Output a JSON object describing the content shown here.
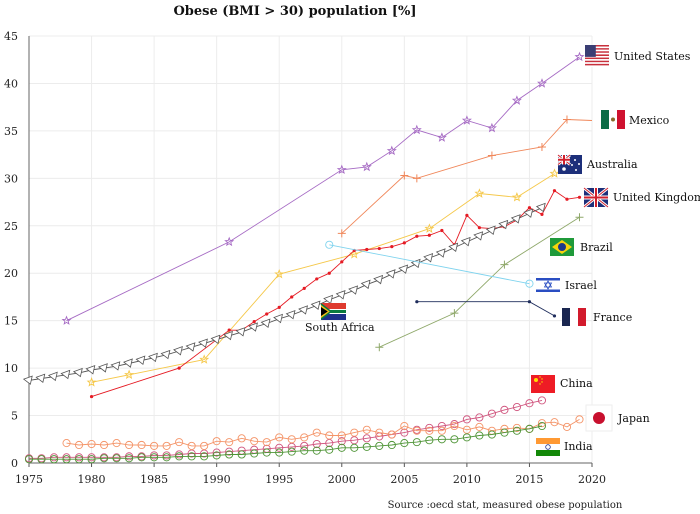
{
  "chart_data": {
    "type": "line",
    "title": "Obese (BMI > 30) population [%]",
    "xlabel": "",
    "ylabel": "",
    "xlim": [
      1975,
      2020
    ],
    "ylim": [
      0,
      45
    ],
    "xticks": [
      "1975",
      "1980",
      "1985",
      "1990",
      "1995",
      "2000",
      "2005",
      "2010",
      "2015",
      "2020"
    ],
    "yticks": [
      "0",
      "5",
      "10",
      "15",
      "20",
      "25",
      "30",
      "35",
      "40",
      "45"
    ],
    "grid": true,
    "source": "Source :oecd stat, measured obese population",
    "series": [
      {
        "name": "United States",
        "color": "#a66bc4",
        "marker": "star",
        "x": [
          1978,
          1991,
          2000,
          2002,
          2004,
          2006,
          2008,
          2010,
          2012,
          2014,
          2016,
          2019
        ],
        "y": [
          15.0,
          23.3,
          30.9,
          31.2,
          32.9,
          35.1,
          34.3,
          36.1,
          35.3,
          38.2,
          40.0,
          42.8
        ]
      },
      {
        "name": "Mexico",
        "color": "#f0875a",
        "marker": "plus",
        "x": [
          2000,
          2005,
          2006,
          2012,
          2016,
          2018,
          2020
        ],
        "y": [
          24.2,
          30.3,
          30.0,
          32.4,
          33.3,
          36.2,
          36.1
        ]
      },
      {
        "name": "Australia",
        "color": "#f5c84a",
        "marker": "star",
        "x": [
          1980,
          1983,
          1989,
          1995,
          2001,
          2007,
          2011,
          2014,
          2017
        ],
        "y": [
          8.5,
          9.3,
          10.9,
          19.9,
          22.0,
          24.7,
          28.4,
          28.0,
          30.5
        ]
      },
      {
        "name": "United Kingdom",
        "color": "#e51b24",
        "marker": "dot",
        "x": [
          1980,
          1987,
          1991,
          1992,
          1993,
          1994,
          1995,
          1996,
          1997,
          1998,
          1999,
          2000,
          2001,
          2002,
          2003,
          2004,
          2005,
          2006,
          2007,
          2008,
          2009,
          2010,
          2011,
          2012,
          2013,
          2014,
          2015,
          2016,
          2017,
          2018,
          2019
        ],
        "y": [
          7.0,
          10.0,
          14.0,
          14.0,
          14.9,
          15.7,
          16.4,
          17.5,
          18.4,
          19.4,
          20.0,
          21.2,
          22.4,
          22.5,
          22.6,
          22.8,
          23.2,
          23.9,
          24.0,
          24.5,
          23.0,
          26.1,
          24.8,
          24.7,
          24.9,
          25.6,
          26.9,
          26.2,
          28.7,
          27.8,
          28.0
        ]
      },
      {
        "name": "South Africa",
        "color": "#555555",
        "marker": "triangle",
        "x": [
          1975,
          1976,
          1977,
          1978,
          1979,
          1980,
          1981,
          1982,
          1983,
          1984,
          1985,
          1986,
          1987,
          1988,
          1989,
          1990,
          1991,
          1992,
          1993,
          1994,
          1995,
          1996,
          1997,
          1998,
          1999,
          2000,
          2001,
          2002,
          2003,
          2004,
          2005,
          2006,
          2007,
          2008,
          2009,
          2010,
          2011,
          2012,
          2013,
          2014,
          2015,
          2016
        ],
        "y": [
          8.7,
          8.9,
          9.1,
          9.3,
          9.5,
          9.8,
          10.0,
          10.2,
          10.5,
          10.8,
          11.1,
          11.4,
          11.8,
          12.2,
          12.6,
          13.0,
          13.4,
          13.8,
          14.3,
          14.7,
          15.2,
          15.6,
          16.1,
          16.6,
          17.2,
          17.7,
          18.2,
          18.8,
          19.3,
          19.9,
          20.4,
          21.0,
          21.6,
          22.1,
          22.7,
          23.3,
          23.9,
          24.5,
          25.1,
          25.7,
          26.3,
          26.9
        ]
      },
      {
        "name": "Brazil",
        "color": "#8fa86a",
        "marker": "plus",
        "x": [
          2003,
          2009,
          2013,
          2019
        ],
        "y": [
          12.2,
          15.8,
          20.9,
          25.9
        ]
      },
      {
        "name": "Israel",
        "color": "#7fd3ee",
        "marker": "circle",
        "x": [
          1999,
          2015
        ],
        "y": [
          23.0,
          18.9
        ]
      },
      {
        "name": "France",
        "color": "#1f2d5c",
        "marker": "dot",
        "x": [
          2006,
          2015,
          2017
        ],
        "y": [
          17.0,
          17.0,
          15.5
        ]
      },
      {
        "name": "China",
        "color": "#d0557e",
        "marker": "circle",
        "x": [
          1975,
          1976,
          1977,
          1978,
          1979,
          1980,
          1981,
          1982,
          1983,
          1984,
          1985,
          1986,
          1987,
          1988,
          1989,
          1990,
          1991,
          1992,
          1993,
          1994,
          1995,
          1996,
          1997,
          1998,
          1999,
          2000,
          2001,
          2002,
          2003,
          2004,
          2005,
          2006,
          2007,
          2008,
          2009,
          2010,
          2011,
          2012,
          2013,
          2014,
          2015,
          2016
        ],
        "y": [
          0.5,
          0.5,
          0.6,
          0.6,
          0.6,
          0.6,
          0.6,
          0.6,
          0.7,
          0.7,
          0.8,
          0.8,
          0.9,
          1.0,
          1.0,
          1.1,
          1.2,
          1.3,
          1.4,
          1.5,
          1.6,
          1.7,
          1.8,
          2.0,
          2.1,
          2.3,
          2.4,
          2.6,
          2.8,
          3.0,
          3.2,
          3.5,
          3.7,
          3.9,
          4.1,
          4.6,
          4.8,
          5.2,
          5.6,
          5.9,
          6.3,
          6.6
        ]
      },
      {
        "name": "Japan",
        "color": "#f49468",
        "marker": "circle",
        "x": [
          1978,
          1979,
          1980,
          1981,
          1982,
          1983,
          1984,
          1985,
          1986,
          1987,
          1988,
          1989,
          1990,
          1991,
          1992,
          1993,
          1994,
          1995,
          1996,
          1997,
          1998,
          1999,
          2000,
          2001,
          2002,
          2003,
          2004,
          2005,
          2006,
          2007,
          2008,
          2009,
          2010,
          2011,
          2012,
          2013,
          2014,
          2015,
          2016,
          2017,
          2018,
          2019
        ],
        "y": [
          2.1,
          1.9,
          2.0,
          1.9,
          2.1,
          1.9,
          1.9,
          1.8,
          1.8,
          2.2,
          1.8,
          1.8,
          2.3,
          2.2,
          2.6,
          2.3,
          2.2,
          2.7,
          2.5,
          2.7,
          3.2,
          2.9,
          2.9,
          3.2,
          3.5,
          3.2,
          3.0,
          3.9,
          3.4,
          3.4,
          3.4,
          3.9,
          3.5,
          3.8,
          3.4,
          3.6,
          3.7,
          3.6,
          4.2,
          4.3,
          3.8,
          4.6
        ]
      },
      {
        "name": "India",
        "color": "#4e9436",
        "marker": "circle",
        "x": [
          1975,
          1976,
          1977,
          1978,
          1979,
          1980,
          1981,
          1982,
          1983,
          1984,
          1985,
          1986,
          1987,
          1988,
          1989,
          1990,
          1991,
          1992,
          1993,
          1994,
          1995,
          1996,
          1997,
          1998,
          1999,
          2000,
          2001,
          2002,
          2003,
          2004,
          2005,
          2006,
          2007,
          2008,
          2009,
          2010,
          2011,
          2012,
          2013,
          2014,
          2015,
          2016
        ],
        "y": [
          0.4,
          0.4,
          0.4,
          0.4,
          0.4,
          0.4,
          0.5,
          0.5,
          0.5,
          0.6,
          0.6,
          0.6,
          0.7,
          0.7,
          0.7,
          0.8,
          0.9,
          0.9,
          1.0,
          1.1,
          1.1,
          1.2,
          1.3,
          1.3,
          1.4,
          1.6,
          1.6,
          1.7,
          1.8,
          1.9,
          2.1,
          2.2,
          2.4,
          2.5,
          2.5,
          2.7,
          2.9,
          3.0,
          3.2,
          3.4,
          3.6,
          3.9
        ]
      }
    ]
  }
}
